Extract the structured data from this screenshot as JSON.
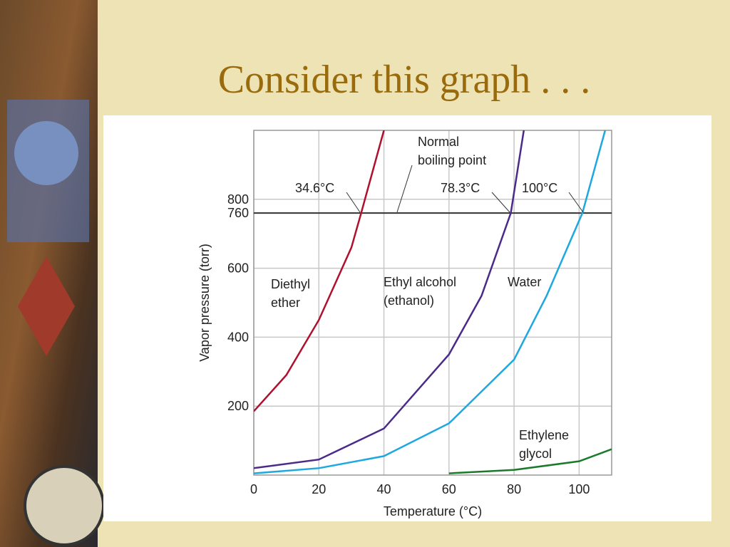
{
  "slide": {
    "title": "Consider this graph . . ."
  },
  "chart_data": {
    "type": "line",
    "x_label": "Temperature (°C)",
    "y_label": "Vapor pressure (torr)",
    "xlim": [
      0,
      110
    ],
    "xticks": [
      0,
      20,
      40,
      60,
      80,
      100
    ],
    "ylim": [
      0,
      1000
    ],
    "yticks": [
      200,
      400,
      600,
      760,
      800
    ],
    "grid": true,
    "reference_line": 760,
    "series": [
      {
        "name": [
          "Diethyl",
          "ether"
        ],
        "color": "#b0102e",
        "x": [
          0,
          10,
          20,
          30,
          33,
          40
        ],
        "values": [
          185,
          290,
          450,
          660,
          760,
          1000
        ]
      },
      {
        "name": [
          "Ethyl alcohol",
          "(ethanol)"
        ],
        "color": "#4b2a8a",
        "x": [
          0,
          20,
          40,
          60,
          70,
          79,
          83
        ],
        "values": [
          20,
          45,
          135,
          350,
          520,
          760,
          1000
        ]
      },
      {
        "name": [
          "Water"
        ],
        "color": "#1ea8e0",
        "x": [
          0,
          20,
          40,
          60,
          80,
          90,
          101,
          108
        ],
        "values": [
          5,
          20,
          55,
          150,
          335,
          520,
          760,
          1000
        ]
      },
      {
        "name": [
          "Ethylene",
          "glycol"
        ],
        "color": "#1a7a2a",
        "x": [
          60,
          80,
          100,
          110
        ],
        "values": [
          5,
          15,
          40,
          75
        ]
      }
    ],
    "annotations": [
      {
        "text": [
          "34.6°C"
        ]
      },
      {
        "text": [
          "78.3°C"
        ]
      },
      {
        "text": [
          "100°C"
        ]
      },
      {
        "text": [
          "Normal",
          "boiling point"
        ]
      }
    ]
  }
}
